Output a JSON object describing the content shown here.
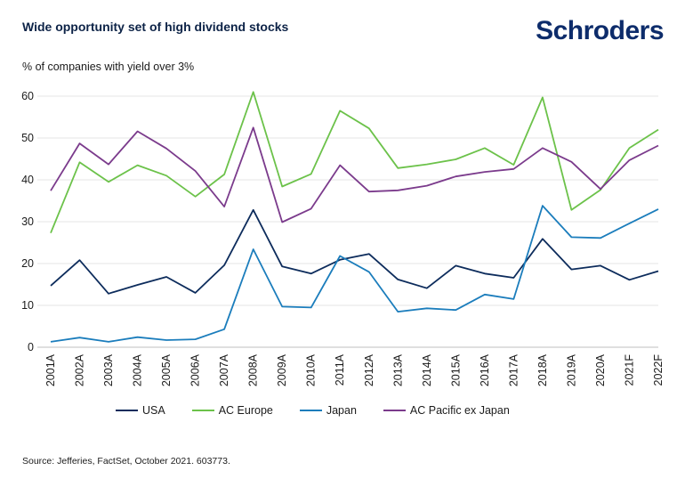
{
  "header": {
    "title": "Wide opportunity set of high dividend stocks",
    "logo": "Schroders"
  },
  "footer": {
    "source": "Source: Jefferies, FactSet, October 2021. 603773."
  },
  "chart_data": {
    "type": "line",
    "title": "Wide opportunity set of high dividend stocks",
    "ylabel": "% of companies with yield over 3%",
    "xlabel": "",
    "ylim": [
      0,
      60
    ],
    "yticks": [
      0,
      10,
      20,
      30,
      40,
      50,
      60
    ],
    "grid": true,
    "legend_position": "bottom",
    "categories": [
      "2001A",
      "2002A",
      "2003A",
      "2004A",
      "2005A",
      "2006A",
      "2007A",
      "2008A",
      "2009A",
      "2010A",
      "2011A",
      "2012A",
      "2013A",
      "2014A",
      "2015A",
      "2016A",
      "2017A",
      "2018A",
      "2019A",
      "2020A",
      "2021F",
      "2022F"
    ],
    "series": [
      {
        "name": "USA",
        "color": "#0d2c5c",
        "values": [
          14.7,
          20.8,
          12.8,
          14.9,
          16.8,
          13.0,
          19.6,
          32.8,
          19.3,
          17.6,
          20.9,
          22.3,
          16.2,
          14.1,
          19.5,
          17.6,
          16.6,
          25.9,
          18.6,
          19.5,
          16.1,
          18.2
        ]
      },
      {
        "name": "AC Europe",
        "color": "#6cc24a",
        "values": [
          27.3,
          44.2,
          39.5,
          43.5,
          41.0,
          36.0,
          41.3,
          61.0,
          38.4,
          41.4,
          56.5,
          52.3,
          42.8,
          43.7,
          44.9,
          47.6,
          43.6,
          59.7,
          32.8,
          37.6,
          47.6,
          52.0
        ]
      },
      {
        "name": "Japan",
        "color": "#1b7dbc",
        "values": [
          1.3,
          2.3,
          1.3,
          2.4,
          1.7,
          1.9,
          4.3,
          23.4,
          9.7,
          9.5,
          21.8,
          18.0,
          8.5,
          9.3,
          8.9,
          12.6,
          11.5,
          33.8,
          26.3,
          26.1,
          29.6,
          33.0
        ]
      },
      {
        "name": "AC Pacific ex Japan",
        "color": "#7b3b8c",
        "values": [
          37.4,
          48.7,
          43.7,
          51.6,
          47.5,
          42.1,
          33.6,
          52.5,
          29.9,
          33.1,
          43.5,
          37.2,
          37.5,
          38.6,
          40.8,
          41.9,
          42.6,
          47.6,
          44.3,
          37.8,
          44.7,
          48.2
        ]
      }
    ]
  }
}
